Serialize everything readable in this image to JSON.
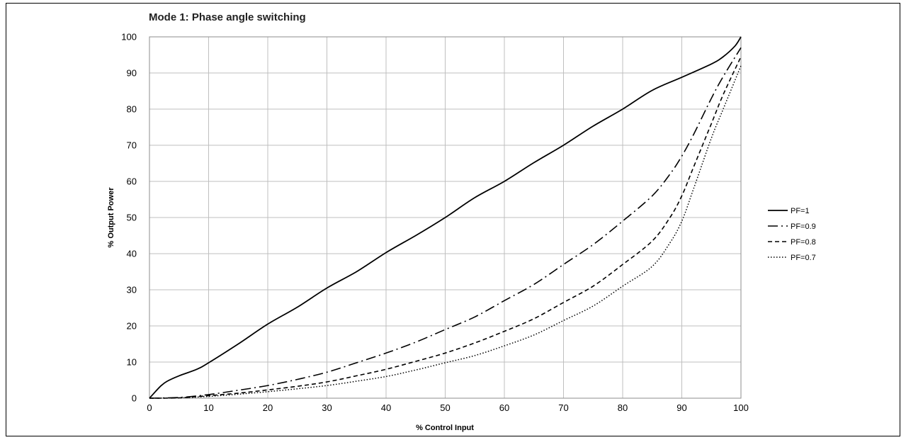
{
  "chart_data": {
    "type": "line",
    "title": "Mode 1: Phase angle switching",
    "xlabel": "% Control Input",
    "ylabel": "% Output Power",
    "xlim": [
      0,
      100
    ],
    "ylim": [
      0,
      100
    ],
    "x_ticks": [
      0,
      10,
      20,
      30,
      40,
      50,
      60,
      70,
      80,
      90,
      100
    ],
    "y_ticks": [
      0,
      10,
      20,
      30,
      40,
      50,
      60,
      70,
      80,
      90,
      100
    ],
    "grid": true,
    "legend_position": "right",
    "colors": {
      "line": "#000000",
      "grid": "#bfbfbf",
      "frame": "#000000"
    },
    "series": [
      {
        "name": "PF=1",
        "style": "solid",
        "x": [
          0,
          1,
          2,
          3,
          5,
          8,
          10,
          15,
          20,
          25,
          30,
          35,
          40,
          45,
          50,
          55,
          60,
          65,
          70,
          75,
          80,
          85,
          90,
          95,
          97,
          99,
          100
        ],
        "y": [
          0,
          1.8,
          3.5,
          4.7,
          6.2,
          8,
          9.8,
          15,
          20.5,
          25.2,
          30.5,
          35,
          40.3,
          45,
          50,
          55.5,
          60,
          65.2,
          70,
          75.3,
          80,
          85.2,
          88.8,
          92.5,
          94.5,
          97.5,
          100
        ]
      },
      {
        "name": "PF=0.9",
        "style": "dashdot",
        "x": [
          0,
          5,
          10,
          15,
          20,
          25,
          30,
          35,
          40,
          45,
          50,
          55,
          60,
          65,
          70,
          75,
          80,
          85,
          88,
          90,
          92,
          95,
          97,
          100
        ],
        "y": [
          0,
          0.2,
          1,
          2.2,
          3.5,
          5.2,
          7.2,
          9.8,
          12.5,
          15.5,
          19,
          22.5,
          27,
          31.5,
          37,
          42.5,
          49,
          56,
          62,
          67,
          73,
          83,
          89,
          97
        ]
      },
      {
        "name": "PF=0.8",
        "style": "dashed",
        "x": [
          0,
          5,
          10,
          15,
          20,
          25,
          30,
          35,
          40,
          45,
          50,
          55,
          60,
          65,
          70,
          75,
          80,
          85,
          88,
          90,
          92,
          95,
          97,
          100
        ],
        "y": [
          0,
          0.1,
          0.7,
          1.4,
          2.3,
          3.3,
          4.5,
          6.2,
          8,
          10.2,
          12.5,
          15.3,
          18.5,
          22,
          26.5,
          31,
          37,
          43.5,
          50,
          56,
          64,
          76,
          84,
          94.5
        ]
      },
      {
        "name": "PF=0.7",
        "style": "dotted",
        "x": [
          0,
          5,
          10,
          15,
          20,
          25,
          30,
          35,
          40,
          45,
          50,
          55,
          60,
          65,
          70,
          75,
          80,
          85,
          88,
          90,
          92,
          95,
          97,
          100
        ],
        "y": [
          0,
          0.1,
          0.5,
          1.1,
          1.8,
          2.6,
          3.5,
          4.7,
          6,
          7.8,
          9.8,
          11.8,
          14.5,
          17.5,
          21.5,
          25.5,
          31,
          36.5,
          43,
          49,
          58,
          72,
          80,
          92
        ]
      }
    ]
  }
}
